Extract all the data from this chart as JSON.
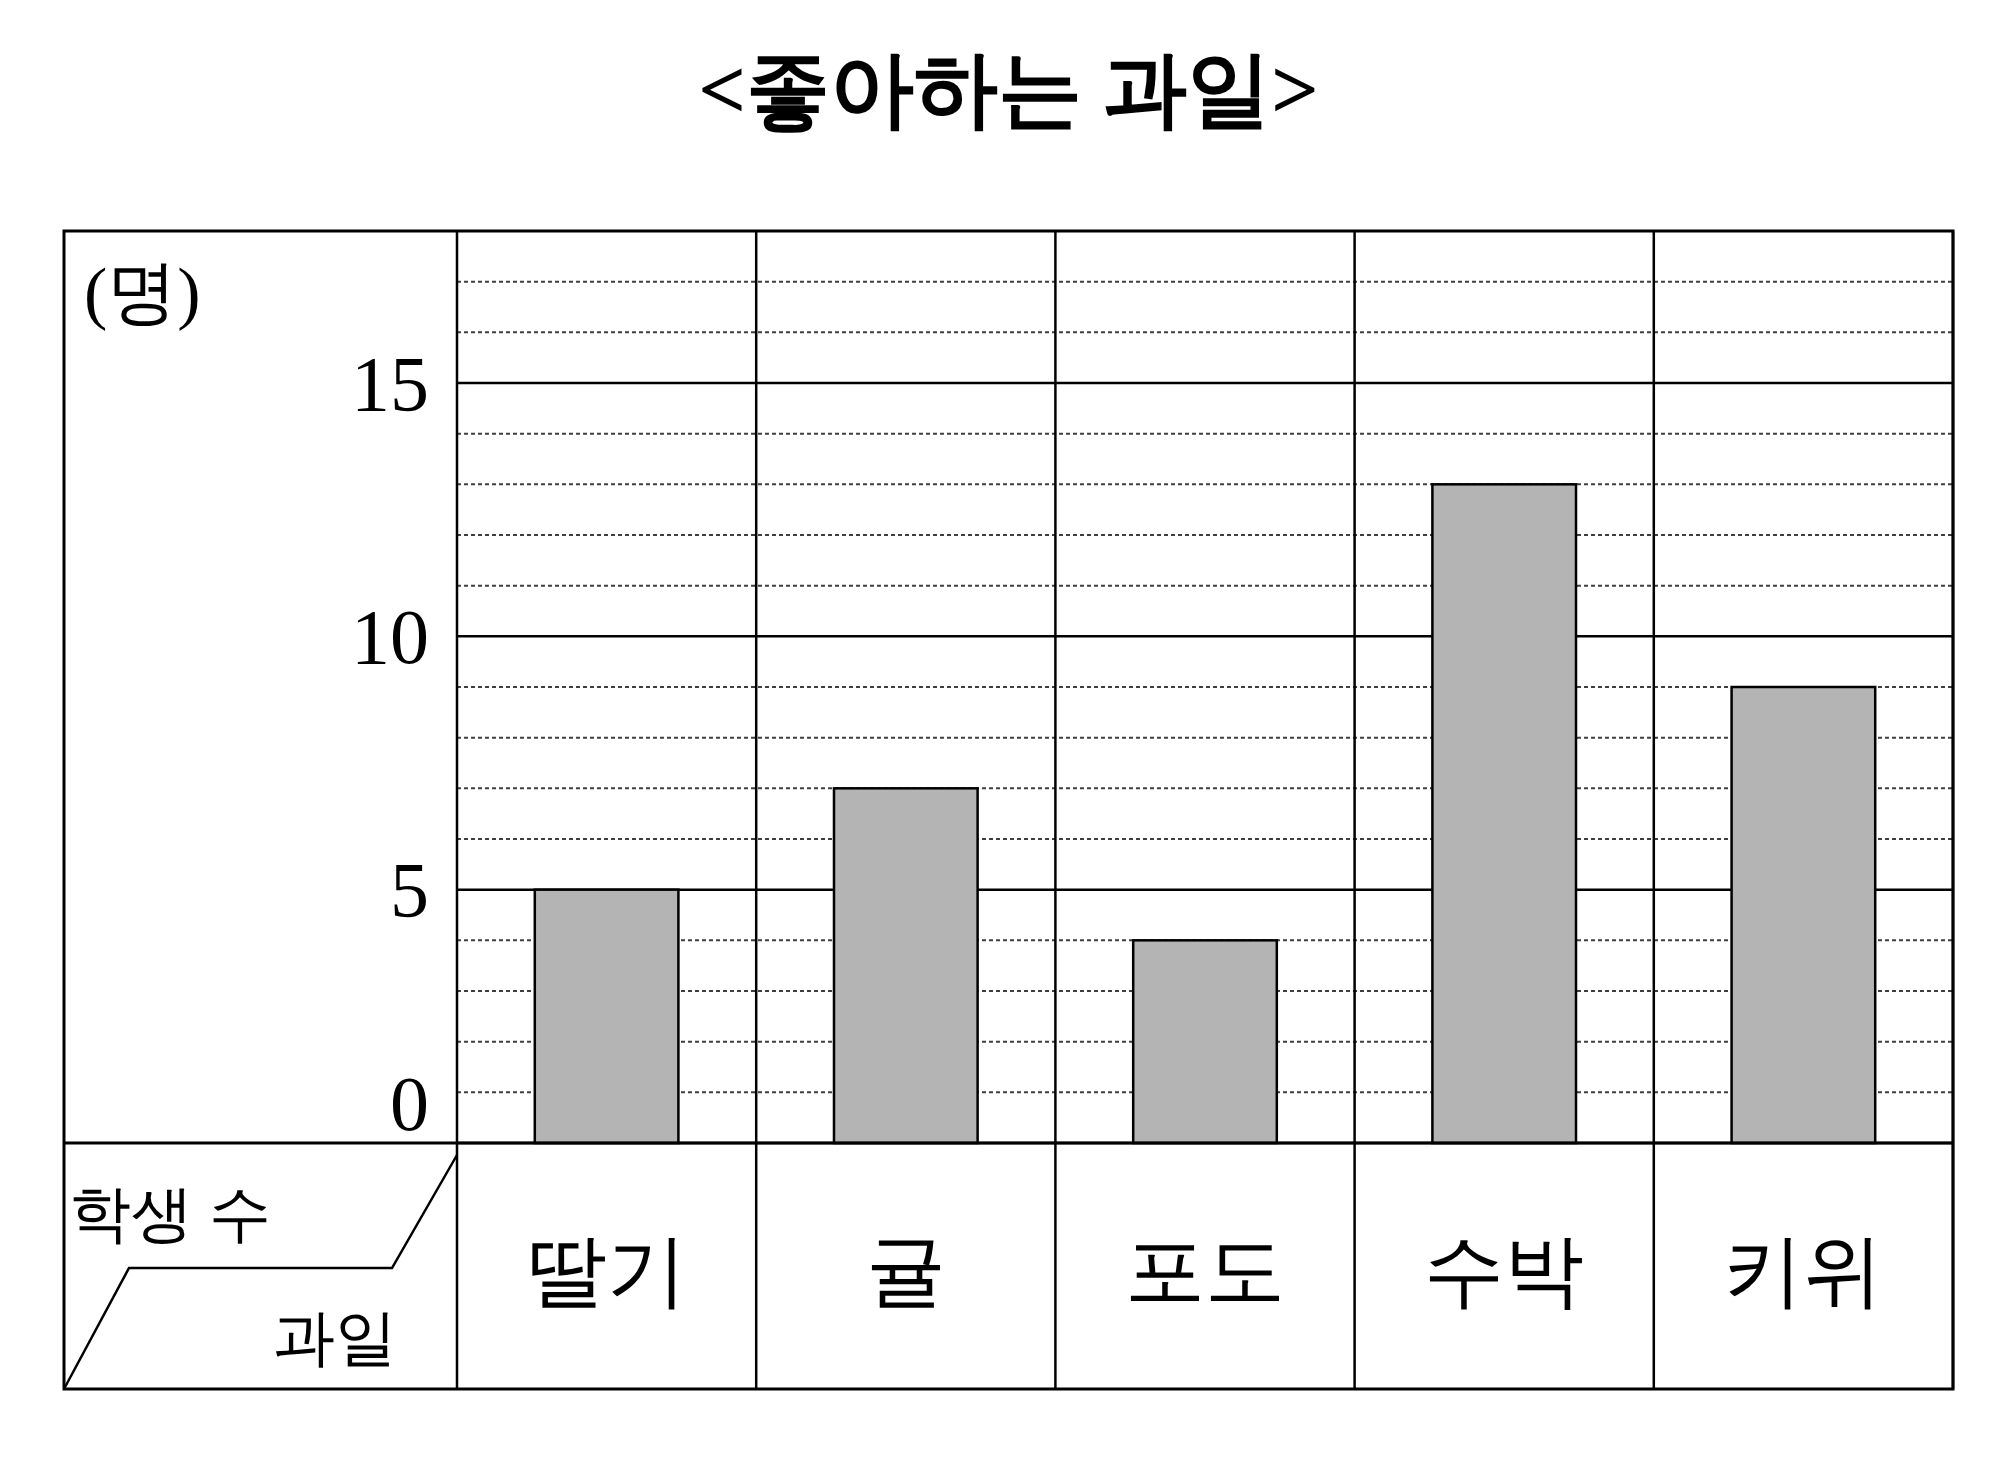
{
  "chart_data": {
    "type": "bar",
    "title": "<좋아하는 과일>",
    "xlabel": "과일",
    "ylabel": "학생 수",
    "annotations": [
      "(명)"
    ],
    "categories": [
      "딸기",
      "귤",
      "포도",
      "수박",
      "키위"
    ],
    "values": [
      5,
      7,
      4,
      13,
      9
    ],
    "color": "#b4b4b4",
    "ylim": [
      0,
      18
    ],
    "yticks": [
      0,
      {
        "value": 1,
        "label": null
      },
      {
        "value": 2,
        "label": null
      },
      {
        "value": 3,
        "label": null
      },
      {
        "value": 4,
        "label": null
      },
      5,
      {
        "value": 6,
        "label": null
      },
      {
        "value": 7,
        "label": null
      },
      {
        "value": 8,
        "label": null
      },
      {
        "value": 9,
        "label": null
      },
      10,
      {
        "value": 11,
        "label": null
      },
      {
        "value": 12,
        "label": null
      },
      {
        "value": 13,
        "label": null
      },
      {
        "value": 14,
        "label": null
      },
      15,
      {
        "value": 16,
        "label": null
      },
      {
        "value": 17,
        "label": null
      }
    ],
    "grid": "y"
  }
}
